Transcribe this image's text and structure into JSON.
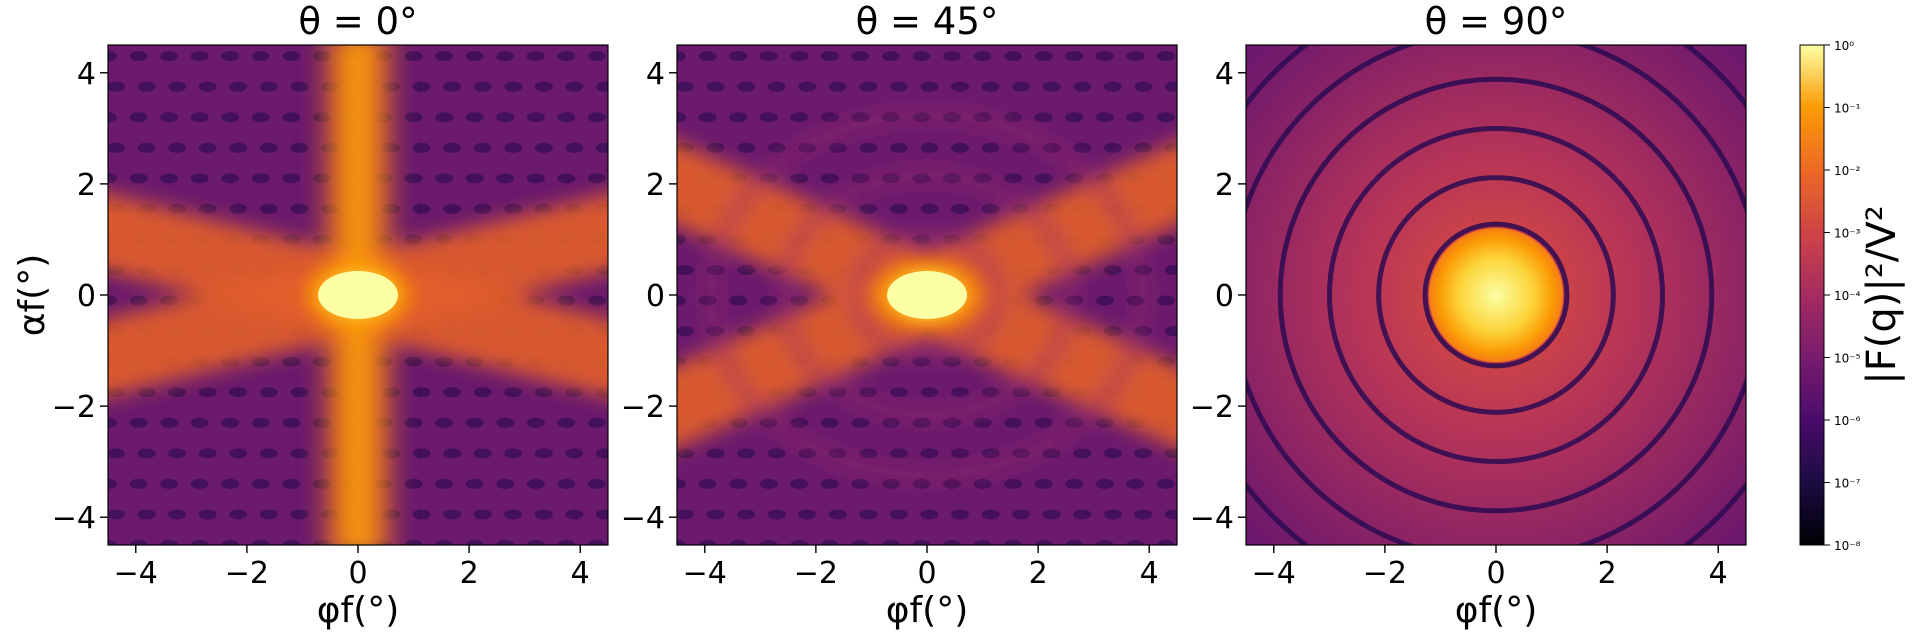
{
  "chart_data": {
    "type": "heatmap",
    "colormap": "inferno",
    "color_scale": "log",
    "colorbar": {
      "label": "|F(q)|²/V²",
      "range": [
        1e-08,
        1
      ],
      "ticks": [
        "10⁰",
        "10⁻¹",
        "10⁻²",
        "10⁻³",
        "10⁻⁴",
        "10⁻⁵",
        "10⁻⁶",
        "10⁻⁷",
        "10⁻⁸"
      ]
    },
    "xlim": [
      -4.5,
      4.5
    ],
    "ylim": [
      -4.5,
      4.5
    ],
    "x_ticks": [
      "−4",
      "−2",
      "0",
      "2",
      "4"
    ],
    "y_ticks": [
      "4",
      "2",
      "0",
      "−2",
      "−4"
    ],
    "xlabel": "φf(°)",
    "ylabel": "αf(°)",
    "panels": [
      {
        "title": "θ = 0°",
        "pattern": "cross"
      },
      {
        "title": "θ = 45°",
        "pattern": "cross-rotated"
      },
      {
        "title": "θ = 90°",
        "pattern": "rings"
      }
    ]
  }
}
